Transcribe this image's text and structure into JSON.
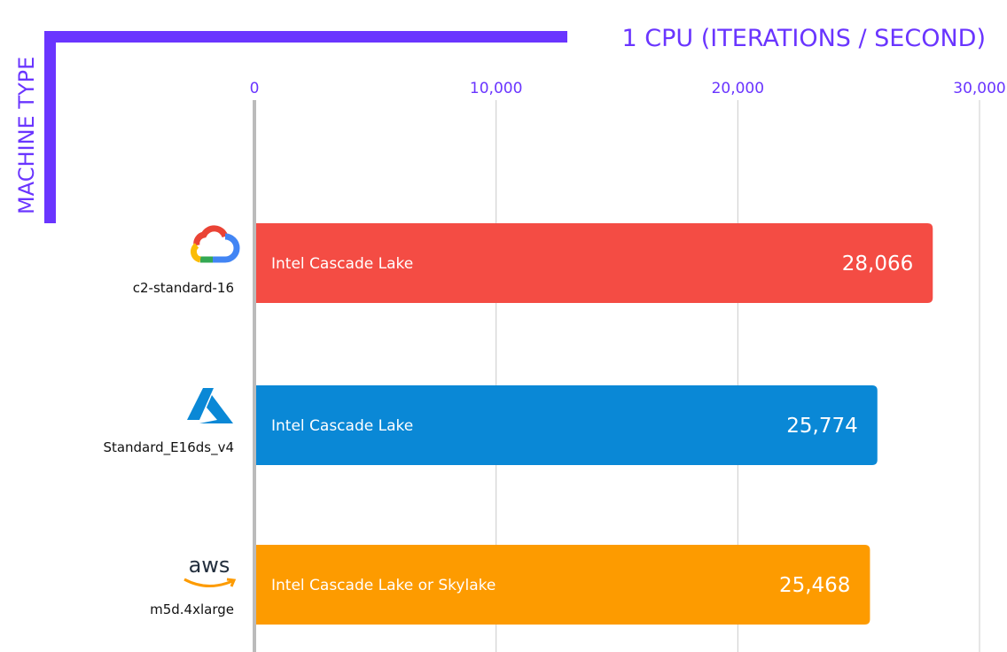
{
  "chart_data": {
    "type": "bar",
    "orientation": "horizontal",
    "title": "1 CPU (ITERATIONS / SECOND)",
    "ylabel": "MACHINE TYPE",
    "xlim": [
      0,
      30000
    ],
    "xticks": [
      "0",
      "10,000",
      "20,000",
      "30,000"
    ],
    "xtick_values": [
      0,
      10000,
      20000,
      30000
    ],
    "grid": true,
    "categories": [
      "c2-standard-16",
      "Standard_E16ds_v4",
      "m5d.4xlarge"
    ],
    "providers": [
      "google-cloud-logo-icon",
      "azure-logo-icon",
      "aws-logo-icon"
    ],
    "bar_labels": [
      "Intel Cascade Lake",
      "Intel Cascade Lake",
      "Intel Cascade Lake or Skylake"
    ],
    "values": [
      28066,
      25774,
      25468
    ],
    "value_labels": [
      "28,066",
      "25,774",
      "25,468"
    ],
    "colors": [
      "#f44c44",
      "#0a88d6",
      "#fd9b00"
    ],
    "accent_color": "#6a35ff"
  }
}
